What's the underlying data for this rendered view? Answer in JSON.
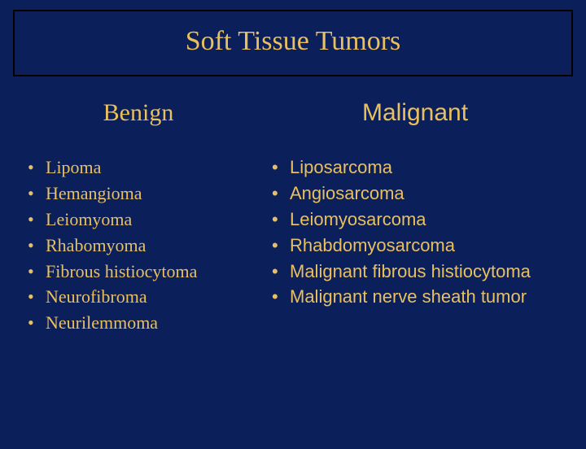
{
  "title": "Soft Tissue Tumors",
  "colors": {
    "background": "#0b1f5a",
    "text": "#e8c060",
    "title_border": "#000000"
  },
  "typography": {
    "title_fontsize": 34,
    "heading_fontsize": 30,
    "item_fontsize": 22,
    "serif_family": "Times New Roman",
    "sans_family": "Arial"
  },
  "columns": {
    "left": {
      "heading": "Benign",
      "items": [
        "Lipoma",
        "Hemangioma",
        "Leiomyoma",
        "Rhabomyoma",
        "Fibrous histiocytoma",
        "Neurofibroma",
        "Neurilemmoma"
      ]
    },
    "right": {
      "heading": "Malignant",
      "items": [
        "Liposarcoma",
        "Angiosarcoma",
        "Leiomyosarcoma",
        "Rhabdomyosarcoma",
        "Malignant fibrous histiocytoma",
        "Malignant nerve sheath tumor"
      ]
    }
  }
}
